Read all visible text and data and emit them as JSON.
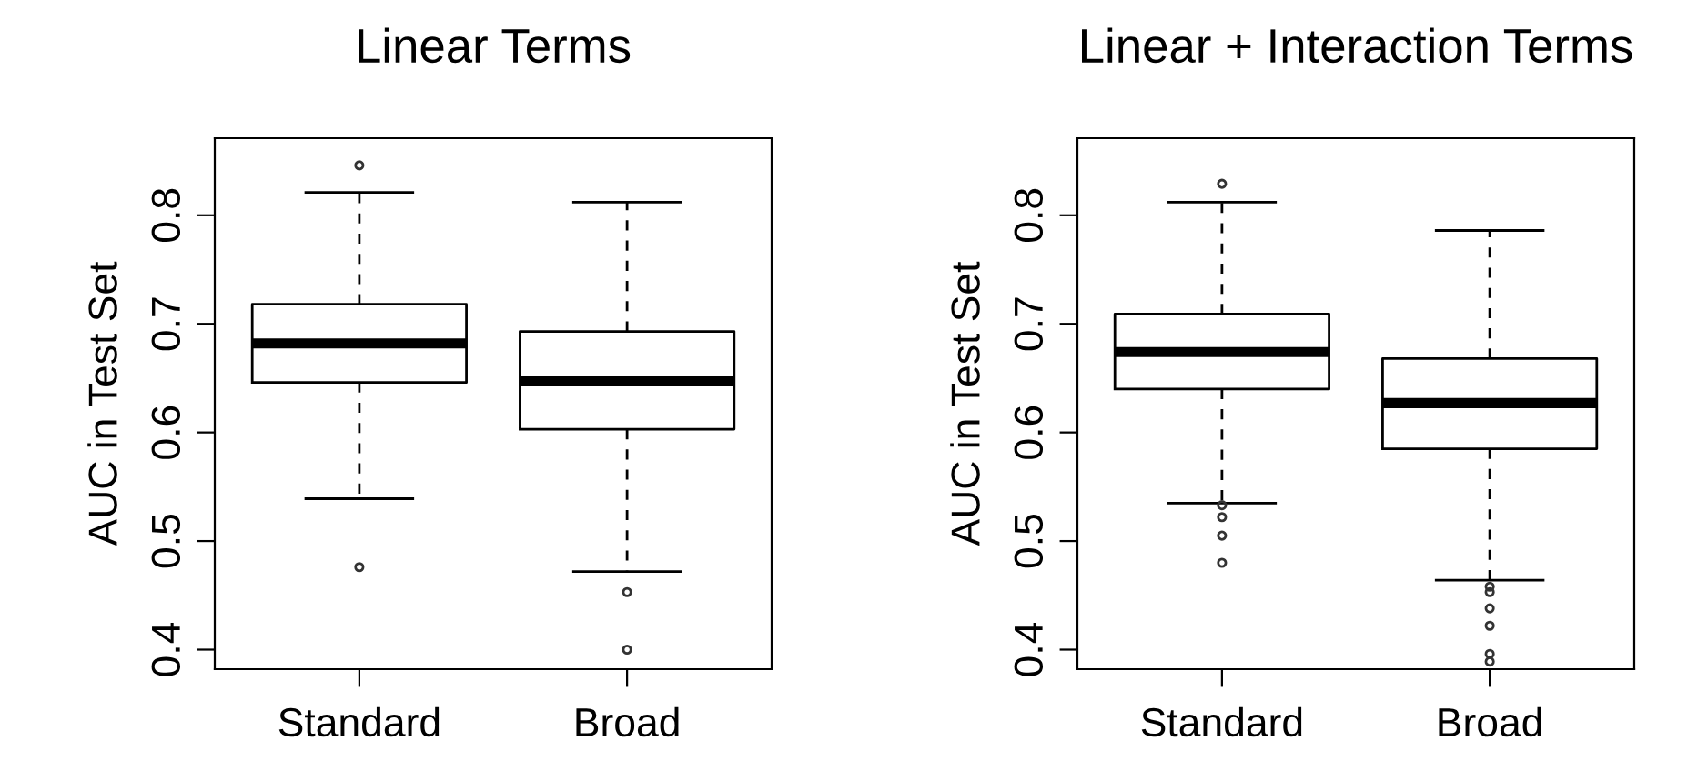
{
  "chart_data": [
    {
      "type": "box",
      "title": "Linear Terms",
      "ylabel": "AUC in Test Set",
      "categories": [
        "Standard",
        "Broad"
      ],
      "ylim": [
        0.382,
        0.871
      ],
      "yticks": [
        {
          "value": 0.4,
          "label": "0.4"
        },
        {
          "value": 0.5,
          "label": "0.5"
        },
        {
          "value": 0.6,
          "label": "0.6"
        },
        {
          "value": 0.7,
          "label": "0.7"
        },
        {
          "value": 0.8,
          "label": "0.8"
        }
      ],
      "grid": false,
      "legend": false,
      "boxes": [
        {
          "low": 0.539,
          "q1": 0.646,
          "median": 0.682,
          "q3": 0.718,
          "high": 0.821,
          "outliers": [
            0.846,
            0.476
          ]
        },
        {
          "low": 0.472,
          "q1": 0.603,
          "median": 0.647,
          "q3": 0.693,
          "high": 0.812,
          "outliers": [
            0.453,
            0.4
          ]
        }
      ]
    },
    {
      "type": "box",
      "title": "Linear + Interaction Terms",
      "ylabel": "AUC in Test Set",
      "categories": [
        "Standard",
        "Broad"
      ],
      "ylim": [
        0.382,
        0.871
      ],
      "yticks": [
        {
          "value": 0.4,
          "label": "0.4"
        },
        {
          "value": 0.5,
          "label": "0.5"
        },
        {
          "value": 0.6,
          "label": "0.6"
        },
        {
          "value": 0.7,
          "label": "0.7"
        },
        {
          "value": 0.8,
          "label": "0.8"
        }
      ],
      "grid": false,
      "legend": false,
      "boxes": [
        {
          "low": 0.535,
          "q1": 0.64,
          "median": 0.674,
          "q3": 0.709,
          "high": 0.812,
          "outliers": [
            0.829,
            0.533,
            0.522,
            0.505,
            0.48
          ]
        },
        {
          "low": 0.464,
          "q1": 0.585,
          "median": 0.627,
          "q3": 0.668,
          "high": 0.786,
          "outliers": [
            0.458,
            0.453,
            0.438,
            0.422,
            0.396,
            0.389
          ]
        }
      ]
    }
  ]
}
